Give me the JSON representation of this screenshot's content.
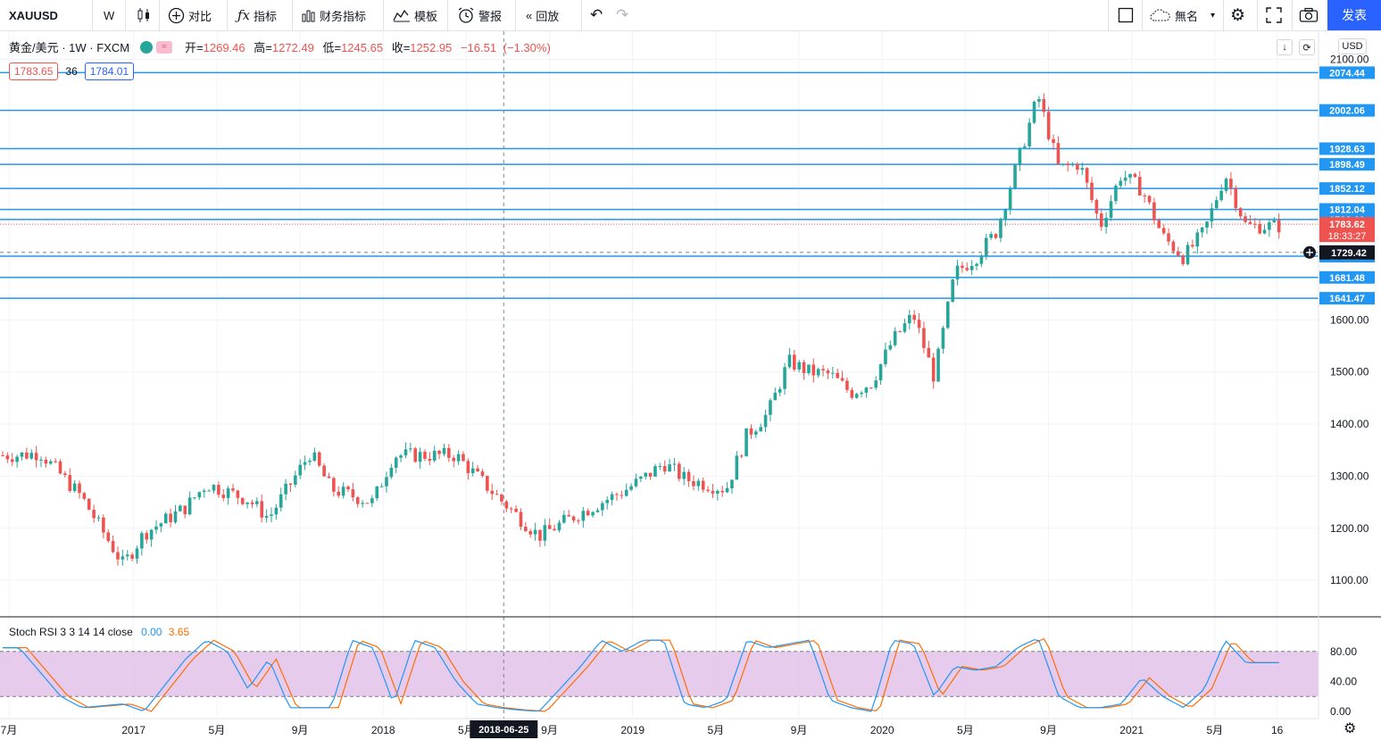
{
  "toolbar": {
    "symbol": "XAUUSD",
    "interval": "W",
    "compare": "对比",
    "indicators": "指标",
    "financials": "财务指标",
    "templates": "模板",
    "alert": "警报",
    "replay": "回放",
    "layout_name": "無名",
    "publish": "发表"
  },
  "legend": {
    "title": "黄金/美元 · 1W · FXCM",
    "open_label": "开=",
    "open": "1269.46",
    "high_label": "高=",
    "high": "1272.49",
    "low_label": "低=",
    "low": "1245.65",
    "close_label": "收=",
    "close": "1252.95",
    "change": "−16.51",
    "change_pct": "(−1.30%)",
    "bid": "1783.65",
    "spread": "36",
    "ask": "1784.01"
  },
  "currency": "USD",
  "colors": {
    "up": "#26a69a",
    "down": "#ef5350",
    "hline": "#2196f3",
    "accent": "#2962ff",
    "stoch_k": "#2196f3",
    "stoch_d": "#ff6d00",
    "stoch_band": "#e1bee7"
  },
  "chart_data": [
    {
      "type": "candlestick",
      "title": "黄金/美元 · 1W · FXCM",
      "ylim": [
        1030,
        2130
      ],
      "y_ticks": [
        1100,
        1200,
        1300,
        1400,
        1500,
        1600,
        2100
      ],
      "x_ticks": [
        "7月",
        "2017",
        "5月",
        "9月",
        "2018",
        "5月",
        "9月",
        "2019",
        "5月",
        "9月",
        "2020",
        "5月",
        "9月",
        "2021",
        "5月",
        "16"
      ],
      "crosshair_date": "2018-06-25",
      "horizontal_levels": [
        2074.44,
        2002.06,
        1928.63,
        1898.49,
        1852.12,
        1812.04,
        1792.6,
        1722.28,
        1681.48,
        1641.47
      ],
      "last_price": 1783.62,
      "countdown": "18:33:27",
      "crosshair_price": 1729.42,
      "trend_anchors": [
        [
          "2016-07",
          1340
        ],
        [
          "2016-08",
          1345
        ],
        [
          "2016-10",
          1260
        ],
        [
          "2016-12",
          1130
        ],
        [
          "2017-01",
          1190
        ],
        [
          "2017-03",
          1240
        ],
        [
          "2017-04",
          1285
        ],
        [
          "2017-06",
          1255
        ],
        [
          "2017-07",
          1220
        ],
        [
          "2017-09",
          1345
        ],
        [
          "2017-10",
          1275
        ],
        [
          "2017-12",
          1250
        ],
        [
          "2018-01",
          1340
        ],
        [
          "2018-04",
          1340
        ],
        [
          "2018-06",
          1260
        ],
        [
          "2018-08",
          1185
        ],
        [
          "2018-10",
          1230
        ],
        [
          "2018-12",
          1270
        ],
        [
          "2019-01",
          1295
        ],
        [
          "2019-02",
          1325
        ],
        [
          "2019-03",
          1295
        ],
        [
          "2019-05",
          1275
        ],
        [
          "2019-06",
          1380
        ],
        [
          "2019-07",
          1420
        ],
        [
          "2019-08",
          1520
        ],
        [
          "2019-09",
          1500
        ],
        [
          "2019-10",
          1495
        ],
        [
          "2019-11",
          1460
        ],
        [
          "2019-12",
          1480
        ],
        [
          "2020-01",
          1560
        ],
        [
          "2020-02",
          1610
        ],
        [
          "2020-03",
          1490
        ],
        [
          "2020-04",
          1690
        ],
        [
          "2020-05",
          1720
        ],
        [
          "2020-06",
          1770
        ],
        [
          "2020-07",
          1900
        ],
        [
          "2020-08",
          2030
        ],
        [
          "2020-09",
          1890
        ],
        [
          "2020-10",
          1900
        ],
        [
          "2020-11",
          1780
        ],
        [
          "2020-12",
          1880
        ],
        [
          "2021-01",
          1850
        ],
        [
          "2021-02",
          1760
        ],
        [
          "2021-03",
          1720
        ],
        [
          "2021-04",
          1770
        ],
        [
          "2021-05",
          1880
        ],
        [
          "2021-06",
          1780
        ]
      ]
    },
    {
      "type": "line",
      "title": "Stoch RSI 3 3 14 14 close",
      "series": [
        {
          "name": "K",
          "value": "0.00"
        },
        {
          "name": "D",
          "value": "3.65"
        }
      ],
      "ylim": [
        0,
        100
      ],
      "y_ticks": [
        "80.00",
        "40.00",
        "0.00"
      ],
      "band": [
        20,
        80
      ],
      "k_anchors": [
        [
          "2016-07",
          85
        ],
        [
          "2016-09",
          20
        ],
        [
          "2016-10",
          5
        ],
        [
          "2016-12",
          10
        ],
        [
          "2017-01",
          0
        ],
        [
          "2017-03",
          70
        ],
        [
          "2017-04",
          95
        ],
        [
          "2017-05",
          80
        ],
        [
          "2017-06",
          30
        ],
        [
          "2017-07",
          70
        ],
        [
          "2017-08",
          5
        ],
        [
          "2017-10",
          5
        ],
        [
          "2017-11",
          95
        ],
        [
          "2017-12",
          85
        ],
        [
          "2018-01",
          10
        ],
        [
          "2018-02",
          95
        ],
        [
          "2018-03",
          85
        ],
        [
          "2018-04",
          40
        ],
        [
          "2018-05",
          10
        ],
        [
          "2018-06",
          5
        ],
        [
          "2018-07",
          2
        ],
        [
          "2018-08",
          0
        ],
        [
          "2018-10",
          60
        ],
        [
          "2018-11",
          95
        ],
        [
          "2018-12",
          80
        ],
        [
          "2019-01",
          95
        ],
        [
          "2019-02",
          95
        ],
        [
          "2019-03",
          10
        ],
        [
          "2019-04",
          5
        ],
        [
          "2019-05",
          15
        ],
        [
          "2019-06",
          95
        ],
        [
          "2019-07",
          85
        ],
        [
          "2019-08",
          90
        ],
        [
          "2019-09",
          95
        ],
        [
          "2019-10",
          15
        ],
        [
          "2019-11",
          5
        ],
        [
          "2019-12",
          0
        ],
        [
          "2020-01",
          95
        ],
        [
          "2020-02",
          90
        ],
        [
          "2020-03",
          20
        ],
        [
          "2020-04",
          60
        ],
        [
          "2020-05",
          55
        ],
        [
          "2020-06",
          60
        ],
        [
          "2020-07",
          85
        ],
        [
          "2020-08",
          98
        ],
        [
          "2020-09",
          20
        ],
        [
          "2020-10",
          5
        ],
        [
          "2020-11",
          5
        ],
        [
          "2020-12",
          10
        ],
        [
          "2021-01",
          45
        ],
        [
          "2021-02",
          20
        ],
        [
          "2021-03",
          5
        ],
        [
          "2021-04",
          30
        ],
        [
          "2021-05",
          95
        ],
        [
          "2021-06",
          65
        ]
      ]
    }
  ]
}
